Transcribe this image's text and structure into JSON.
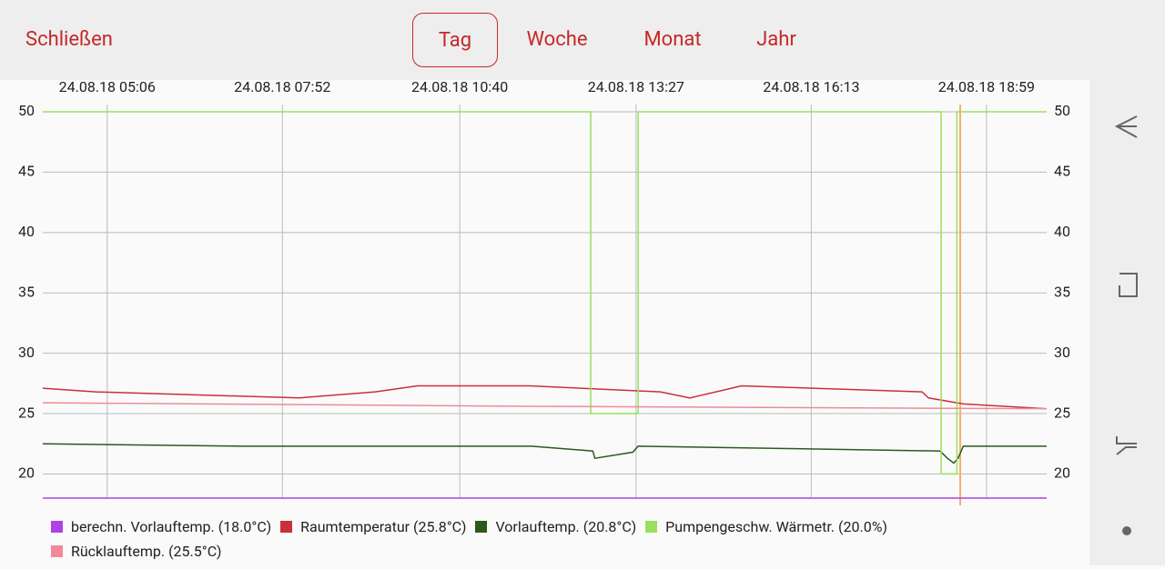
{
  "header": {
    "close": "Schließen",
    "tabs": [
      "Tag",
      "Woche",
      "Monat",
      "Jahr"
    ],
    "active_tab": 0
  },
  "chart_data": {
    "type": "line",
    "xlim": [
      245,
      1196
    ],
    "xticks": [
      {
        "value": 306,
        "label": "24.08.18 05:06"
      },
      {
        "value": 472,
        "label": "24.08.18 07:52"
      },
      {
        "value": 640,
        "label": "24.08.18 10:40"
      },
      {
        "value": 807,
        "label": "24.08.18 13:27"
      },
      {
        "value": 973,
        "label": "24.08.18 16:13"
      },
      {
        "value": 1139,
        "label": "24.08.18 18:59"
      }
    ],
    "ylim": [
      18,
      50
    ],
    "yticks": [
      20,
      25,
      30,
      35,
      40,
      45,
      50
    ],
    "grid": true,
    "series": [
      {
        "name": "berechn. Vorlauftemp. (18.0°C)",
        "color": "#b040e8",
        "x": [
          245,
          1196
        ],
        "values": [
          18,
          18
        ]
      },
      {
        "name": "Raumtemperatur (25.8°C)",
        "color": "#c8303a",
        "x": [
          245,
          295,
          488,
          560,
          600,
          706,
          830,
          858,
          907,
          1078,
          1084,
          1117,
          1196
        ],
        "values": [
          27.1,
          26.8,
          26.3,
          26.8,
          27.3,
          27.3,
          26.8,
          26.3,
          27.3,
          26.8,
          26.3,
          25.8,
          25.4
        ]
      },
      {
        "name": "Vorlauftemp. (20.8°C)",
        "color": "#2b5a1c",
        "x": [
          245,
          432,
          708,
          766,
          768,
          804,
          809,
          1095,
          1102,
          1108,
          1112,
          1117,
          1196
        ],
        "values": [
          22.5,
          22.3,
          22.3,
          21.9,
          21.3,
          21.8,
          22.3,
          21.9,
          21.3,
          20.9,
          21.3,
          22.3,
          22.3
        ]
      },
      {
        "name": "Pumpengeschw. Wärmetr. (20.0%)",
        "color": "#99e060",
        "x": [
          245,
          764,
          764,
          809,
          809,
          1096,
          1096,
          1111,
          1111,
          1196
        ],
        "values": [
          50,
          50,
          25,
          25,
          50,
          50,
          20,
          20,
          50,
          50
        ]
      },
      {
        "name": "Rücklauftemp. (25.5°C)",
        "color": "#f08a98",
        "x": [
          245,
          720,
          1196
        ],
        "values": [
          25.9,
          25.6,
          25.4
        ]
      }
    ]
  }
}
